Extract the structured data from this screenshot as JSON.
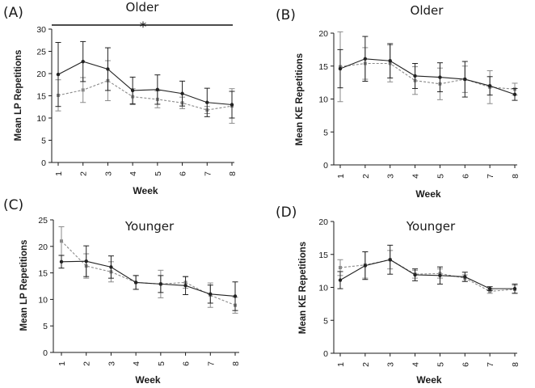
{
  "figure": {
    "type": "line-grid"
  },
  "chart_data": [
    {
      "type": "line",
      "panel": "(A)",
      "title": "Older",
      "xlabel": "Week",
      "ylabel": "Mean LP Repetitions",
      "categories": [
        "1",
        "2",
        "3",
        "4",
        "5",
        "6",
        "7",
        "8"
      ],
      "ylim": [
        0,
        30
      ],
      "yticks": [
        0,
        5,
        10,
        15,
        20,
        25,
        30
      ],
      "significance": "*",
      "series": [
        {
          "name": "solid",
          "style": "solid",
          "color": "#222222",
          "values": [
            19.8,
            22.7,
            21.0,
            16.2,
            16.4,
            15.5,
            13.5,
            13.0
          ],
          "errors": [
            7.2,
            4.5,
            4.8,
            3.0,
            3.3,
            2.8,
            3.2,
            3.0
          ]
        },
        {
          "name": "dashed",
          "style": "dashed",
          "color": "#8a8a8a",
          "values": [
            15.1,
            16.3,
            18.4,
            14.8,
            14.2,
            13.4,
            11.8,
            12.7
          ],
          "errors": [
            3.5,
            2.8,
            4.5,
            1.8,
            1.9,
            1.3,
            0.8,
            3.9
          ]
        }
      ]
    },
    {
      "type": "line",
      "panel": "(B)",
      "title": "Older",
      "xlabel": "Week",
      "ylabel": "Mean KE Repetitions",
      "categories": [
        "1",
        "2",
        "3",
        "4",
        "5",
        "6",
        "7",
        "8"
      ],
      "ylim": [
        0,
        20
      ],
      "yticks": [
        0,
        5,
        10,
        15,
        20
      ],
      "series": [
        {
          "name": "solid",
          "style": "solid",
          "color": "#222222",
          "values": [
            14.6,
            16.1,
            15.8,
            13.5,
            13.3,
            13.0,
            12.0,
            10.7
          ],
          "errors": [
            2.9,
            3.4,
            2.6,
            1.9,
            2.2,
            2.7,
            1.4,
            0.9
          ]
        },
        {
          "name": "dashed",
          "style": "dashed",
          "color": "#8a8a8a",
          "values": [
            14.9,
            15.4,
            15.4,
            12.8,
            12.3,
            13.0,
            11.8,
            11.5
          ],
          "errors": [
            5.3,
            2.4,
            2.8,
            2.1,
            2.4,
            2.0,
            2.5,
            0.9
          ]
        }
      ]
    },
    {
      "type": "line",
      "panel": "(C)",
      "title": "Younger",
      "xlabel": "Week",
      "ylabel": "Mean LP Repetitions",
      "categories": [
        "1",
        "2",
        "3",
        "4",
        "5",
        "6",
        "7",
        "8"
      ],
      "ylim": [
        0,
        25
      ],
      "yticks": [
        0,
        5,
        10,
        15,
        20,
        25
      ],
      "series": [
        {
          "name": "solid",
          "style": "solid",
          "color": "#222222",
          "values": [
            17.1,
            17.2,
            16.1,
            13.2,
            12.9,
            12.6,
            11.0,
            10.6
          ],
          "errors": [
            1.2,
            2.9,
            2.1,
            1.3,
            1.6,
            1.7,
            1.7,
            2.7
          ]
        },
        {
          "name": "dashed",
          "style": "dashed",
          "color": "#8a8a8a",
          "values": [
            21.0,
            16.3,
            15.2,
            13.2,
            12.9,
            13.2,
            10.8,
            8.9
          ],
          "errors": [
            2.7,
            2.3,
            1.9,
            1.3,
            2.6,
            1.1,
            2.3,
            1.5
          ]
        }
      ]
    },
    {
      "type": "line",
      "panel": "(D)",
      "title": "Younger",
      "xlabel": "Week",
      "ylabel": "Mean KE Repetitions",
      "categories": [
        "1",
        "2",
        "3",
        "4",
        "5",
        "6",
        "7",
        "8"
      ],
      "ylim": [
        0,
        20
      ],
      "yticks": [
        0,
        5,
        10,
        15,
        20
      ],
      "series": [
        {
          "name": "solid",
          "style": "solid",
          "color": "#222222",
          "values": [
            11.1,
            13.3,
            14.2,
            11.9,
            11.8,
            11.6,
            9.8,
            9.8
          ],
          "errors": [
            1.3,
            2.1,
            2.2,
            0.9,
            1.3,
            0.7,
            0.3,
            0.7
          ]
        },
        {
          "name": "dashed",
          "style": "dashed",
          "color": "#8a8a8a",
          "values": [
            13.0,
            13.4,
            14.2,
            12.0,
            12.1,
            11.4,
            9.4,
            9.7
          ],
          "errors": [
            1.2,
            2.0,
            1.4,
            0.6,
            0.7,
            0.5,
            0.3,
            0.6
          ]
        }
      ]
    }
  ]
}
